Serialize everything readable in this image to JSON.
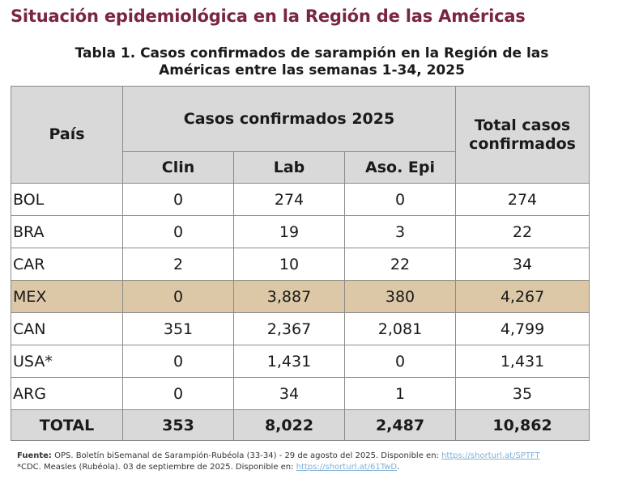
{
  "page_title": "Situación epidemiológica en la Región de las Américas",
  "table_caption_line1": "Tabla 1. Casos confirmados de sarampión en la Región de las",
  "table_caption_line2": "Américas entre las semanas 1-34, 2025",
  "headers": {
    "country": "País",
    "group": "Casos confirmados 2025",
    "clin": "Clin",
    "lab": "Lab",
    "epi": "Aso. Epi",
    "total_line1": "Total casos",
    "total_line2": "confirmados"
  },
  "rows": [
    {
      "country": "BOL",
      "clin": "0",
      "lab": "274",
      "epi": "0",
      "total": "274"
    },
    {
      "country": "BRA",
      "clin": "0",
      "lab": "19",
      "epi": "3",
      "total": "22"
    },
    {
      "country": "CAR",
      "clin": "2",
      "lab": "10",
      "epi": "22",
      "total": "34"
    },
    {
      "country": "MEX",
      "clin": "0",
      "lab": "3,887",
      "epi": "380",
      "total": "4,267"
    },
    {
      "country": "CAN",
      "clin": "351",
      "lab": "2,367",
      "epi": "2,081",
      "total": "4,799"
    },
    {
      "country": "USA*",
      "clin": "0",
      "lab": "1,431",
      "epi": "0",
      "total": "1,431"
    },
    {
      "country": "ARG",
      "clin": "0",
      "lab": "34",
      "epi": "1",
      "total": "35"
    }
  ],
  "totals": {
    "label": "TOTAL",
    "clin": "353",
    "lab": "8,022",
    "epi": "2,487",
    "total": "10,862"
  },
  "source": {
    "label": "Fuente:",
    "text": " OPS. Boletín biSemanal de Sarampión-Rubéola (33-34) - 29 de agosto del 2025. Disponible en: ",
    "link": "https://shorturl.at/SPTFT"
  },
  "footnote": {
    "text": "*CDC. Measles (Rubéola). 03 de septiembre de 2025. Disponible en: ",
    "link": "https://shorturl.at/61TwD",
    "end": "."
  },
  "colors": {
    "title": "#7a2542",
    "header_bg": "#d9d9d9",
    "highlight_bg": "#dcc8a6",
    "link": "#7fb0d8"
  }
}
